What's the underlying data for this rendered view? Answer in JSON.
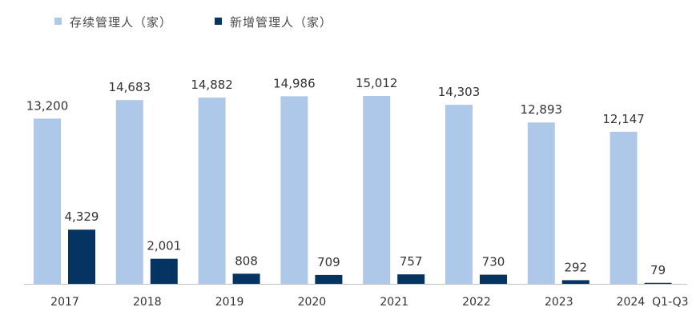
{
  "chart_data": {
    "type": "bar",
    "categories": [
      "2017",
      "2018",
      "2019",
      "2020",
      "2021",
      "2022",
      "2023",
      "2024 Q1-Q3"
    ],
    "category_labels": [
      "2017",
      "2018",
      "2019",
      "2020",
      "2021",
      "2022",
      "2023",
      "2024  Q1-Q3"
    ],
    "series": [
      {
        "name": "存续管理人（家）",
        "color": "#adc8e9",
        "values": [
          13200,
          14683,
          14882,
          14986,
          15012,
          14303,
          12893,
          12147
        ],
        "labels": [
          "13,200",
          "14,683",
          "14,882",
          "14,986",
          "15,012",
          "14,303",
          "12,893",
          "12,147"
        ]
      },
      {
        "name": "新增管理人（家）",
        "color": "#063462",
        "values": [
          4329,
          2001,
          808,
          709,
          757,
          730,
          292,
          79
        ],
        "labels": [
          "4,329",
          "2,001",
          "808",
          "709",
          "757",
          "730",
          "292",
          "79"
        ]
      }
    ],
    "title": "",
    "xlabel": "",
    "ylabel": "",
    "ylim": [
      0,
      15012
    ],
    "grid": false,
    "legend_position": "top-left",
    "axis_color": "#bfbfbf"
  }
}
